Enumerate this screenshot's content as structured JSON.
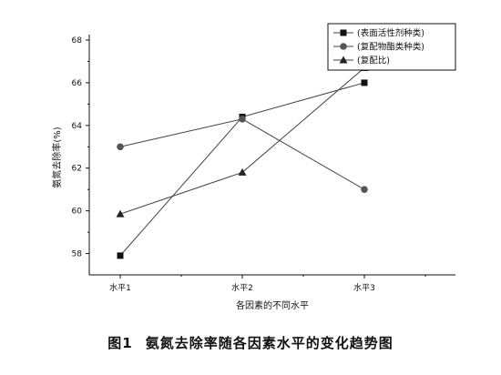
{
  "chart_data": {
    "type": "line",
    "categories": [
      "水平1",
      "水平2",
      "水平3"
    ],
    "series": [
      {
        "name": "(表面活性剂种类)",
        "marker": "square",
        "color": "#111111",
        "values": [
          57.9,
          64.4,
          66.0
        ]
      },
      {
        "name": "(复配物酯类种类)",
        "marker": "circle",
        "color": "#555555",
        "values": [
          63.0,
          64.3,
          61.0
        ]
      },
      {
        "name": "(复配比)",
        "marker": "triangle",
        "color": "#222222",
        "values": [
          59.85,
          61.8,
          66.7
        ]
      }
    ],
    "xlabel": "各因素的不同水平",
    "ylabel": "氨氮去除率(%)",
    "ylim": [
      57,
      68
    ],
    "yticks": [
      58,
      60,
      62,
      64,
      66,
      68
    ],
    "grid": false,
    "legend_position": "top-right"
  },
  "caption": {
    "number": "图1",
    "text": "氨氮去除率随各因素水平的变化趋势图"
  }
}
